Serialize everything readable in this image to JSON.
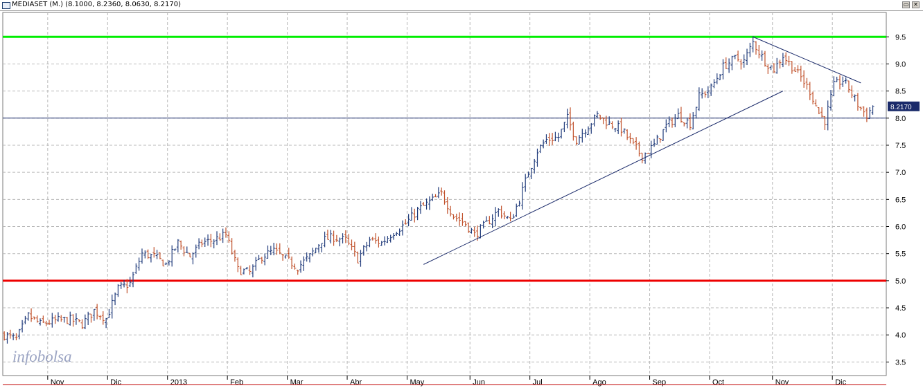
{
  "window": {
    "title": "MEDIASET (M.) (8.1000, 8.2360, 8.0630, 8.2170)",
    "restore_label": "▭",
    "close_label": "✕"
  },
  "chart_data": {
    "type": "ohlc",
    "title": "MEDIASET (M.)",
    "last_bar": {
      "open": 8.1,
      "high": 8.236,
      "low": 8.063,
      "close": 8.217
    },
    "last_value_label": "8.2170",
    "y_axis": {
      "position": "right",
      "ylim": [
        3.25,
        9.95
      ],
      "ticks": [
        3.5,
        4.0,
        4.5,
        5.0,
        5.5,
        6.0,
        6.5,
        7.0,
        7.5,
        8.0,
        8.5,
        9.0,
        9.5
      ],
      "tick_labels": [
        "3.5",
        "4.0",
        "4.5",
        "5.0",
        "5.5",
        "6.0",
        "6.5",
        "7.0",
        "7.5",
        "8.0",
        "8.5",
        "9.0",
        "9.5"
      ]
    },
    "x_axis": {
      "months": [
        "Nov",
        "Dic",
        "2013",
        "Feb",
        "Mar",
        "Abr",
        "May",
        "Jun",
        "Jul",
        "Ago",
        "Sep",
        "Oct",
        "Nov",
        "Dic"
      ],
      "month_start_index": [
        15,
        35,
        55,
        75,
        95,
        115,
        135,
        156,
        176,
        196,
        216,
        236,
        257,
        277
      ],
      "bar_count": 295
    },
    "grid": true,
    "colors": {
      "up": "#1f3a7a",
      "down": "#c0502a",
      "resistance": "#00ee00",
      "support": "#ee0000",
      "trend": "#1a2a6a"
    },
    "anchors": [
      [
        0,
        4.0
      ],
      [
        4,
        3.92
      ],
      [
        8,
        4.35
      ],
      [
        12,
        4.2
      ],
      [
        18,
        4.27
      ],
      [
        22,
        4.28
      ],
      [
        26,
        4.2
      ],
      [
        30,
        4.45
      ],
      [
        34,
        4.3
      ],
      [
        38,
        4.85
      ],
      [
        42,
        4.95
      ],
      [
        46,
        5.5
      ],
      [
        50,
        5.45
      ],
      [
        54,
        5.3
      ],
      [
        58,
        5.7
      ],
      [
        62,
        5.45
      ],
      [
        66,
        5.7
      ],
      [
        70,
        5.75
      ],
      [
        74,
        5.85
      ],
      [
        78,
        5.2
      ],
      [
        82,
        5.15
      ],
      [
        86,
        5.45
      ],
      [
        90,
        5.55
      ],
      [
        94,
        5.4
      ],
      [
        98,
        5.25
      ],
      [
        102,
        5.45
      ],
      [
        106,
        5.75
      ],
      [
        110,
        5.8
      ],
      [
        114,
        5.75
      ],
      [
        118,
        5.4
      ],
      [
        122,
        5.75
      ],
      [
        126,
        5.7
      ],
      [
        130,
        5.9
      ],
      [
        134,
        6.05
      ],
      [
        138,
        6.3
      ],
      [
        142,
        6.45
      ],
      [
        146,
        6.6
      ],
      [
        150,
        6.2
      ],
      [
        154,
        6.05
      ],
      [
        157,
        5.85
      ],
      [
        161,
        6.05
      ],
      [
        165,
        6.3
      ],
      [
        169,
        6.1
      ],
      [
        172,
        6.5
      ],
      [
        175,
        7.0
      ],
      [
        178,
        7.4
      ],
      [
        181,
        7.6
      ],
      [
        185,
        7.65
      ],
      [
        188,
        8.0
      ],
      [
        191,
        7.6
      ],
      [
        194,
        7.8
      ],
      [
        198,
        8.05
      ],
      [
        202,
        7.9
      ],
      [
        206,
        7.8
      ],
      [
        210,
        7.5
      ],
      [
        213,
        7.3
      ],
      [
        217,
        7.5
      ],
      [
        221,
        7.85
      ],
      [
        225,
        8.05
      ],
      [
        229,
        7.9
      ],
      [
        232,
        8.4
      ],
      [
        236,
        8.55
      ],
      [
        240,
        8.95
      ],
      [
        244,
        9.1
      ],
      [
        247,
        9.05
      ],
      [
        250,
        9.4
      ],
      [
        254,
        9.05
      ],
      [
        257,
        8.9
      ],
      [
        260,
        9.15
      ],
      [
        263,
        8.95
      ],
      [
        266,
        8.75
      ],
      [
        269,
        8.5
      ],
      [
        272,
        8.1
      ],
      [
        274,
        7.95
      ],
      [
        277,
        8.6
      ],
      [
        280,
        8.7
      ],
      [
        282,
        8.55
      ],
      [
        285,
        8.25
      ],
      [
        288,
        8.05
      ],
      [
        290,
        8.217
      ]
    ],
    "horizontal_lines": [
      {
        "name": "resistance",
        "value": 9.5,
        "color": "#00ee00",
        "width": 3
      },
      {
        "name": "support",
        "value": 5.0,
        "color": "#ee0000",
        "width": 3
      },
      {
        "name": "level",
        "value": 8.0,
        "color": "#1a2a6a",
        "width": 1
      }
    ],
    "trendlines": [
      {
        "name": "uptrend",
        "x1": 140,
        "y1": 5.3,
        "x2": 260,
        "y2": 8.5
      },
      {
        "name": "downtrend",
        "x1": 250,
        "y1": 9.5,
        "x2": 286,
        "y2": 8.65
      }
    ],
    "watermark": "infobolsa"
  }
}
